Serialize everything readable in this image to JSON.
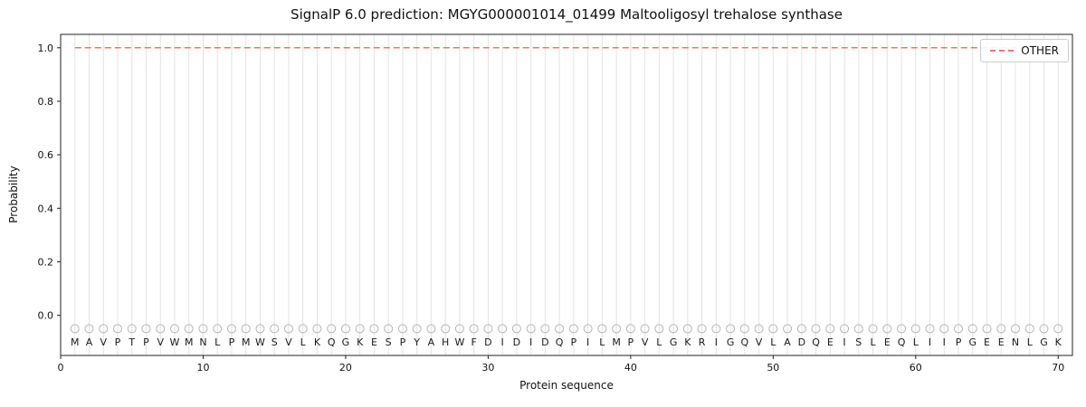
{
  "chart_data": {
    "type": "line",
    "title": "SignalP 6.0 prediction: MGYG000001014_01499 Maltooligosyl trehalose synthase",
    "xlabel": "Protein sequence",
    "ylabel": "Probability",
    "xlim": [
      0,
      71
    ],
    "ylim": [
      -0.15,
      1.05
    ],
    "xticks": [
      0,
      10,
      20,
      30,
      40,
      50,
      60,
      70
    ],
    "yticks": [
      0.0,
      0.2,
      0.4,
      0.6,
      0.8,
      1.0
    ],
    "grid": "vertical line at every residue position",
    "sequence": "MAVPTPVWMNLPMWSVLKQGKESPYAHWFDIDIDQPILMPVLGKRIGQVLADQEISLEQLIIPGEENLGK",
    "residue_markers": {
      "shape": "open-circle",
      "y": -0.05
    },
    "residue_letters_y": -0.1,
    "series": [
      {
        "name": "OTHER",
        "style": "dashed",
        "color": "#f87070",
        "x_start": 1,
        "values": [
          1.0,
          1.0,
          1.0,
          1.0,
          1.0,
          1.0,
          1.0,
          1.0,
          1.0,
          1.0,
          1.0,
          1.0,
          1.0,
          1.0,
          1.0,
          1.0,
          1.0,
          1.0,
          1.0,
          1.0,
          1.0,
          1.0,
          1.0,
          1.0,
          1.0,
          1.0,
          1.0,
          1.0,
          1.0,
          1.0,
          1.0,
          1.0,
          1.0,
          1.0,
          1.0,
          1.0,
          1.0,
          1.0,
          1.0,
          1.0,
          1.0,
          1.0,
          1.0,
          1.0,
          1.0,
          1.0,
          1.0,
          1.0,
          1.0,
          1.0,
          1.0,
          1.0,
          1.0,
          1.0,
          1.0,
          1.0,
          1.0,
          1.0,
          1.0,
          1.0,
          1.0,
          1.0,
          1.0,
          1.0,
          1.0,
          1.0,
          1.0,
          1.0,
          1.0,
          1.0
        ]
      }
    ],
    "legend": {
      "position": "upper right",
      "entries": [
        "OTHER"
      ]
    },
    "colors": {
      "line": "#f87070",
      "marker_stroke": "#b5b5b5",
      "grid": "#e3e3e3",
      "spine": "#222222",
      "text": "#111111"
    }
  }
}
